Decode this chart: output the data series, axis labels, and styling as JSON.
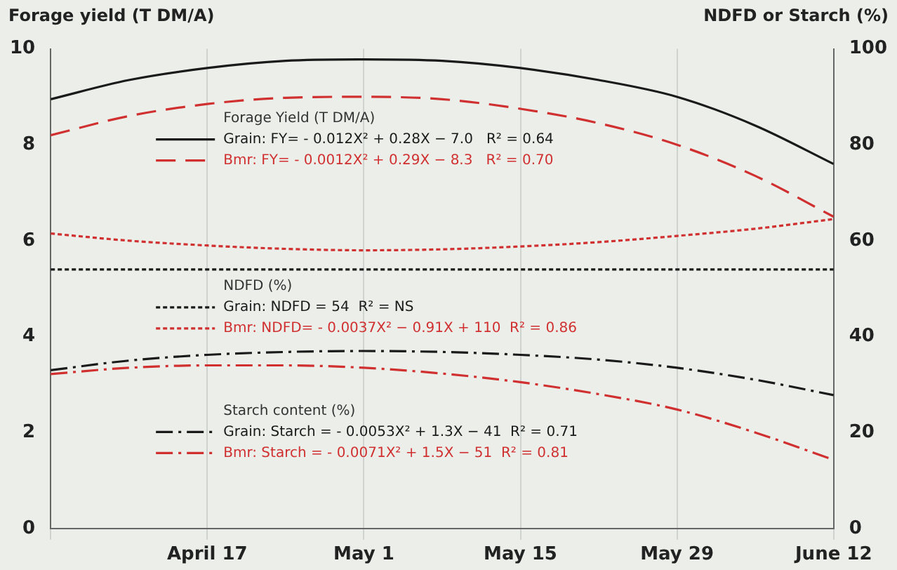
{
  "chart_data": {
    "type": "line",
    "ylabel": "Forage yield (T DM/A)",
    "y2label": "NDFD or Starch (%)",
    "x": [
      "--04-03",
      "--04-10",
      "--04-17",
      "--04-24",
      "--05-01",
      "--05-08",
      "--05-15",
      "--05-22",
      "--05-29",
      "--06-05",
      "--06-12"
    ],
    "xlim": [
      "--04-03",
      "--06-12"
    ],
    "xticks": [
      {
        "value": "--04-03",
        "label": null
      },
      {
        "value": "--04-17",
        "label": "April 17"
      },
      {
        "value": "--05-01",
        "label": "May 1"
      },
      {
        "value": "--05-15",
        "label": "May 15"
      },
      {
        "value": "--05-29",
        "label": "May 29"
      },
      {
        "value": "--06-12",
        "label": "June 12"
      }
    ],
    "ylim": [
      0,
      10
    ],
    "yticks": [
      0,
      2,
      4,
      6,
      8,
      10
    ],
    "y2lim": [
      0,
      100
    ],
    "y2ticks": [
      0,
      20,
      40,
      60,
      80,
      100
    ],
    "grid": "x",
    "legend": "left",
    "marker": "none",
    "annotations": [
      "Forage Yield (T DM/A)",
      "NDFD (%)",
      "Starch content (%)"
    ],
    "series": [
      {
        "name": "Grain: FY= - 0.012X² + 0.28X − 7.0   R² = 0.64",
        "color": "#1a1a1a",
        "line_style": "solid",
        "values": [
          8.95,
          9.35,
          9.6,
          9.75,
          9.78,
          9.75,
          9.6,
          9.35,
          9.0,
          8.4,
          7.6
        ]
      },
      {
        "name": "Bmr: FY= - 0.0012X² + 0.29X − 8.3   R² = 0.70",
        "color": "#d03030",
        "line_style": "dashed",
        "values": [
          8.2,
          8.6,
          8.85,
          8.98,
          9.0,
          8.95,
          8.75,
          8.45,
          8.0,
          7.35,
          6.5
        ]
      },
      {
        "name": "Grain: NDFD = 54  R² = NS",
        "color": "#1a1a1a",
        "line_style": "dotted",
        "axis": "y2",
        "values": [
          54,
          54,
          54,
          54,
          54,
          54,
          54,
          54,
          54,
          54,
          54
        ]
      },
      {
        "name": "Bmr: NDFD= - 0.0037X² − 0.91X + 110  R² = 0.86",
        "color": "#d03030",
        "line_style": "dotted",
        "axis": "y2",
        "values": [
          61.5,
          60,
          59,
          58.3,
          58,
          58.2,
          58.8,
          59.7,
          61,
          62.5,
          64.5
        ]
      },
      {
        "name": "Grain: Starch = - 0.0053X² + 1.3X − 41  R² = 0.71",
        "color": "#1a1a1a",
        "line_style": "dashdot",
        "axis": "y2",
        "values": [
          33,
          35,
          36.2,
          36.8,
          37,
          36.8,
          36.2,
          35.2,
          33.5,
          31,
          27.8
        ]
      },
      {
        "name": "Bmr: Starch = - 0.0071X² + 1.5X − 51  R² = 0.81",
        "color": "#d03030",
        "line_style": "dashdot",
        "axis": "y2",
        "values": [
          32.2,
          33.5,
          34,
          34,
          33.5,
          32.3,
          30.5,
          28,
          24.8,
          20,
          14.3
        ]
      }
    ]
  }
}
